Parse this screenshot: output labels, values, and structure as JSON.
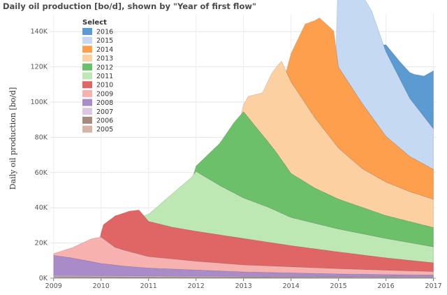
{
  "chart_data": {
    "type": "area",
    "stacked": true,
    "title": "Daily oil production [bo/d], shown by \"Year of first flow\"",
    "ylabel": "Daily oil production [bo/d]",
    "xlabel": "",
    "xlim": [
      2008.93,
      2017.05
    ],
    "ylim": [
      0,
      150000
    ],
    "xticks": [
      2009,
      2010,
      2011,
      2012,
      2013,
      2014,
      2015,
      2016,
      2017
    ],
    "xtick_labels": [
      "2009",
      "2010",
      "2011",
      "2012",
      "2013",
      "2014",
      "2015",
      "2016",
      "2017"
    ],
    "yticks": [
      0,
      20000,
      40000,
      60000,
      80000,
      100000,
      120000,
      140000
    ],
    "ytick_labels": [
      "0K",
      "20K",
      "40K",
      "60K",
      "80K",
      "100K",
      "120K",
      "140K"
    ],
    "grid": true,
    "legend": {
      "title": "Select",
      "placement": "top-left"
    },
    "series": [
      {
        "name": "2005",
        "color": "#d4b5a6",
        "start": 2009.0,
        "points": [
          [
            2009.0,
            500
          ],
          [
            2012.0,
            400
          ],
          [
            2017.0,
            300
          ]
        ]
      },
      {
        "name": "2006",
        "color": "#a68a7d",
        "start": 2009.0,
        "points": [
          [
            2009.0,
            400
          ],
          [
            2013.0,
            300
          ],
          [
            2017.0,
            200
          ]
        ]
      },
      {
        "name": "2007",
        "color": "#dcc7e0",
        "start": 2009.0,
        "points": [
          [
            2009.0,
            600
          ],
          [
            2013.0,
            400
          ],
          [
            2017.0,
            300
          ]
        ]
      },
      {
        "name": "2008",
        "color": "#a98bc9",
        "start": 2009.0,
        "points": [
          [
            2009.0,
            11500
          ],
          [
            2009.4,
            10000
          ],
          [
            2010.0,
            7000
          ],
          [
            2010.5,
            5500
          ],
          [
            2011.0,
            4500
          ],
          [
            2012.0,
            3500
          ],
          [
            2013.0,
            2500
          ],
          [
            2014.0,
            2000
          ],
          [
            2015.0,
            1500
          ],
          [
            2016.0,
            1200
          ],
          [
            2017.0,
            1000
          ]
        ]
      },
      {
        "name": "2009",
        "color": "#f7b2b0",
        "start": 2009.0,
        "points": [
          [
            2009.0,
            1000
          ],
          [
            2009.4,
            6000
          ],
          [
            2009.8,
            13000
          ],
          [
            2010.0,
            15000
          ],
          [
            2010.3,
            10000
          ],
          [
            2010.7,
            8000
          ],
          [
            2011.0,
            6500
          ],
          [
            2012.0,
            5000
          ],
          [
            2013.0,
            4000
          ],
          [
            2014.0,
            3500
          ],
          [
            2015.0,
            3000
          ],
          [
            2016.0,
            2500
          ],
          [
            2017.0,
            2000
          ]
        ]
      },
      {
        "name": "2010",
        "color": "#e06666",
        "start": 2009.98,
        "points": [
          [
            2009.98,
            0
          ],
          [
            2010.05,
            8000
          ],
          [
            2010.3,
            18000
          ],
          [
            2010.6,
            23000
          ],
          [
            2010.8,
            25000
          ],
          [
            2011.0,
            20000
          ],
          [
            2011.5,
            18000
          ],
          [
            2012.0,
            17000
          ],
          [
            2013.0,
            15000
          ],
          [
            2014.0,
            12000
          ],
          [
            2015.0,
            9500
          ],
          [
            2016.0,
            7000
          ],
          [
            2017.0,
            5000
          ]
        ]
      },
      {
        "name": "2011",
        "color": "#bde8b4",
        "start": 2010.9,
        "points": [
          [
            2010.9,
            0
          ],
          [
            2011.0,
            4000
          ],
          [
            2011.5,
            19000
          ],
          [
            2011.9,
            30000
          ],
          [
            2012.0,
            34000
          ],
          [
            2012.5,
            28000
          ],
          [
            2013.0,
            23000
          ],
          [
            2013.5,
            20000
          ],
          [
            2014.0,
            16000
          ],
          [
            2015.0,
            13000
          ],
          [
            2016.0,
            11000
          ],
          [
            2017.0,
            9000
          ]
        ]
      },
      {
        "name": "2012",
        "color": "#6cc06a",
        "start": 2011.95,
        "points": [
          [
            2011.95,
            0
          ],
          [
            2012.0,
            3000
          ],
          [
            2012.5,
            24000
          ],
          [
            2012.8,
            40000
          ],
          [
            2013.0,
            49000
          ],
          [
            2013.3,
            42000
          ],
          [
            2013.7,
            33000
          ],
          [
            2014.0,
            25000
          ],
          [
            2014.5,
            20000
          ],
          [
            2015.0,
            17000
          ],
          [
            2016.0,
            13000
          ],
          [
            2017.0,
            11000
          ]
        ]
      },
      {
        "name": "2013",
        "color": "#fdd0a2",
        "start": 2012.95,
        "points": [
          [
            2012.95,
            0
          ],
          [
            2013.1,
            12000
          ],
          [
            2013.4,
            24000
          ],
          [
            2013.6,
            42000
          ],
          [
            2013.8,
            56000
          ],
          [
            2014.0,
            52000
          ],
          [
            2014.5,
            40000
          ],
          [
            2015.0,
            29000
          ],
          [
            2015.5,
            22000
          ],
          [
            2016.0,
            19000
          ],
          [
            2016.5,
            17000
          ],
          [
            2017.0,
            16000
          ]
        ]
      },
      {
        "name": "2014",
        "color": "#fd9f4d",
        "start": 2013.9,
        "points": [
          [
            2013.9,
            0
          ],
          [
            2014.0,
            16000
          ],
          [
            2014.3,
            45000
          ],
          [
            2014.6,
            60000
          ],
          [
            2014.9,
            63000
          ],
          [
            2015.0,
            46000
          ],
          [
            2015.5,
            37000
          ],
          [
            2016.0,
            26000
          ],
          [
            2016.5,
            20000
          ],
          [
            2017.0,
            17000
          ]
        ]
      },
      {
        "name": "2015",
        "color": "#c6d9f2",
        "start": 2014.95,
        "points": [
          [
            2014.95,
            0
          ],
          [
            2015.0,
            60000
          ],
          [
            2015.3,
            63000
          ],
          [
            2015.7,
            60000
          ],
          [
            2016.0,
            48000
          ],
          [
            2016.5,
            33000
          ],
          [
            2017.0,
            23000
          ]
        ]
      },
      {
        "name": "2016",
        "color": "#5b9bd1",
        "start": 2015.95,
        "points": [
          [
            2015.95,
            0
          ],
          [
            2016.0,
            4000
          ],
          [
            2016.3,
            10000
          ],
          [
            2016.6,
            17000
          ],
          [
            2016.8,
            23000
          ],
          [
            2017.0,
            33000
          ]
        ]
      }
    ]
  }
}
